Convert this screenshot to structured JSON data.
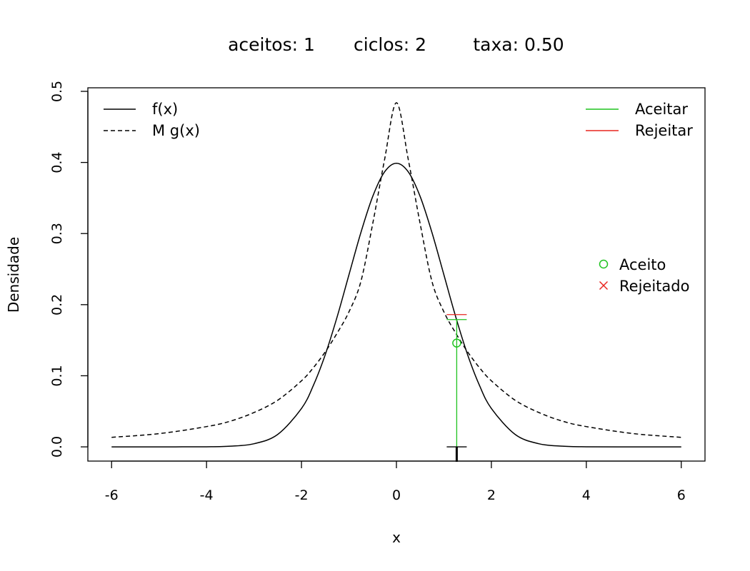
{
  "title": {
    "aceitos": "aceitos: 1",
    "ciclos": "ciclos: 2",
    "taxa": "taxa: 0.50"
  },
  "colors": {
    "accept": "#1fc31f",
    "reject": "#e8251f",
    "ink": "#000000"
  },
  "chart_data": {
    "type": "line",
    "xlabel": "x",
    "ylabel": "Densidade",
    "xlim": [
      -6.5,
      6.5
    ],
    "ylim": [
      -0.02,
      0.505
    ],
    "xticks": [
      -6,
      -4,
      -2,
      0,
      2,
      4,
      6
    ],
    "xtick_labels": [
      "-6",
      "-4",
      "-2",
      "0",
      "2",
      "4",
      "6"
    ],
    "yticks": [
      0.0,
      0.1,
      0.2,
      0.3,
      0.4,
      0.5
    ],
    "ytick_labels": [
      "0.0",
      "0.1",
      "0.2",
      "0.3",
      "0.4",
      "0.5"
    ],
    "grid": false,
    "series": [
      {
        "name": "f(x)",
        "style": "solid",
        "x": [
          -6,
          -5,
          -4,
          -3.5,
          -3,
          -2.5,
          -2,
          -1.75,
          -1.5,
          -1.25,
          -1,
          -0.75,
          -0.5,
          -0.25,
          0,
          0.25,
          0.5,
          0.75,
          1,
          1.25,
          1.5,
          1.75,
          2,
          2.5,
          3,
          3.5,
          4,
          5,
          6
        ],
        "y": [
          0.0,
          0.0,
          0.0001,
          0.0009,
          0.0044,
          0.0175,
          0.054,
          0.0863,
          0.1295,
          0.1826,
          0.242,
          0.3011,
          0.3521,
          0.3867,
          0.3989,
          0.3867,
          0.3521,
          0.3011,
          0.242,
          0.1826,
          0.1295,
          0.0863,
          0.054,
          0.0175,
          0.0044,
          0.0009,
          0.0001,
          0.0,
          0.0
        ]
      },
      {
        "name": "M g(x)",
        "style": "dashed",
        "x": [
          -6,
          -5,
          -4,
          -3.5,
          -3,
          -2.5,
          -2,
          -1.75,
          -1.5,
          -1.25,
          -1,
          -0.75,
          -0.5,
          -0.25,
          0,
          0.25,
          0.5,
          0.75,
          1,
          1.25,
          1.5,
          1.75,
          2,
          2.5,
          3,
          3.5,
          4,
          5,
          6
        ],
        "y": [
          0.0134,
          0.0186,
          0.0285,
          0.0361,
          0.0483,
          0.0656,
          0.0929,
          0.1113,
          0.1336,
          0.1599,
          0.1899,
          0.2323,
          0.3137,
          0.4039,
          0.4839,
          0.4039,
          0.3137,
          0.2323,
          0.1899,
          0.1599,
          0.1336,
          0.1113,
          0.0929,
          0.0656,
          0.0483,
          0.0361,
          0.0285,
          0.0186,
          0.0134
        ]
      }
    ],
    "proposal": {
      "x": 1.27,
      "u_level": 0.146,
      "f_level": 0.179,
      "Mg_level": 0.186,
      "accepted": true
    },
    "legends": {
      "curves": {
        "position": "top-left",
        "entries": [
          "f(x)",
          "M g(x)"
        ]
      },
      "lines": {
        "position": "top-right",
        "entries": [
          "Aceitar",
          "Rejeitar"
        ]
      },
      "points": {
        "position": "right",
        "entries": [
          "Aceito",
          "Rejeitado"
        ]
      }
    }
  }
}
